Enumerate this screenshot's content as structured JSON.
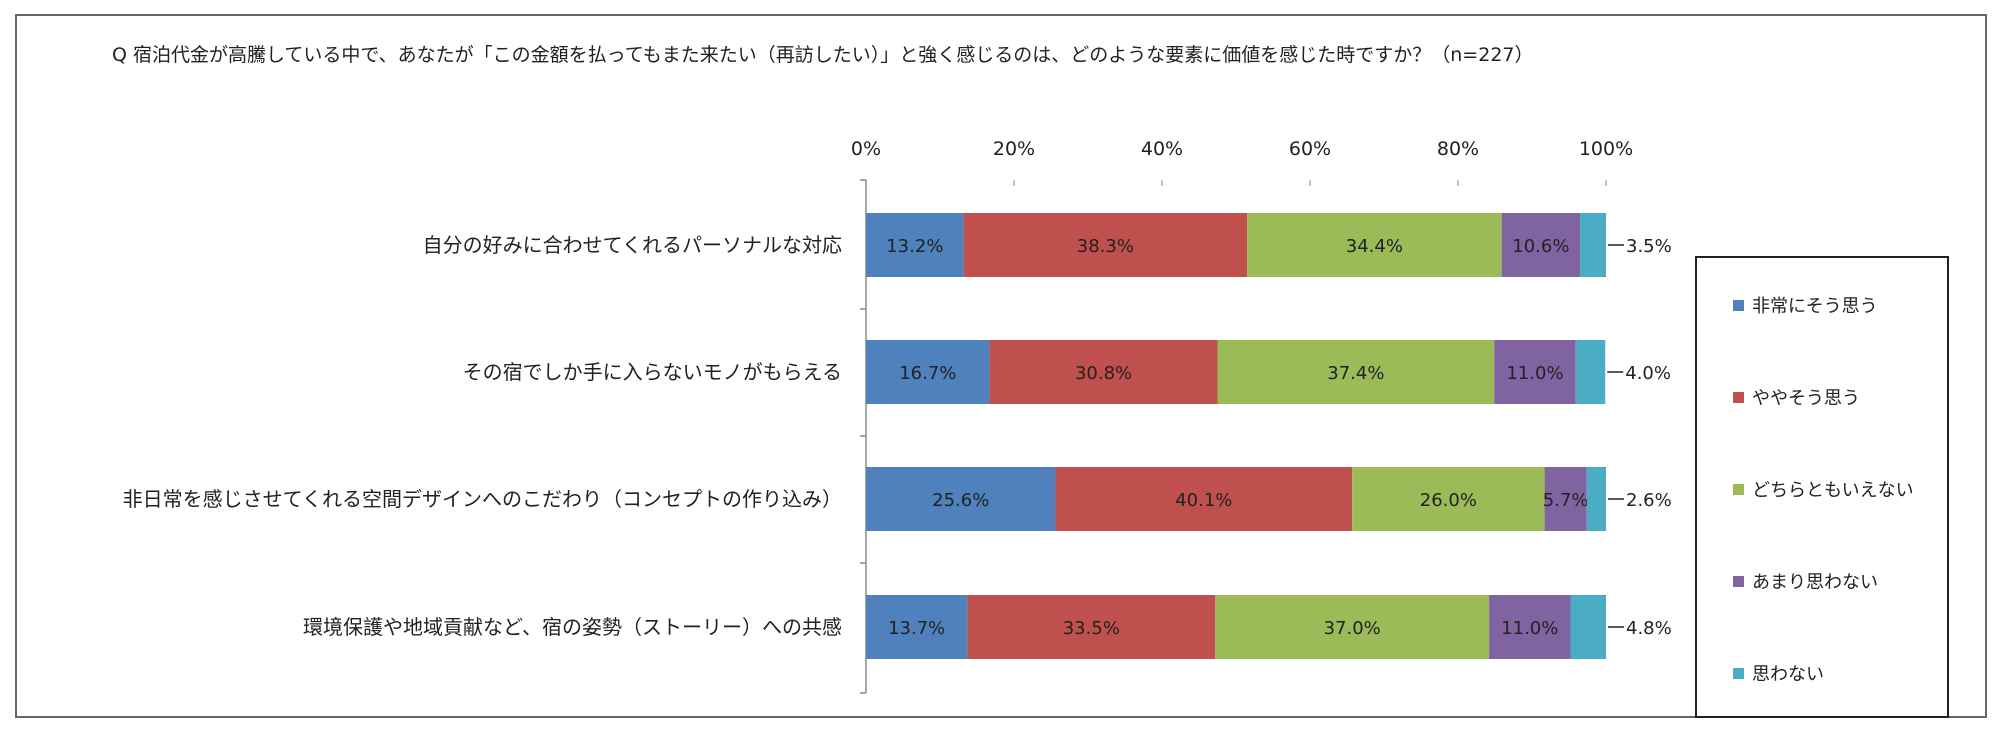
{
  "question": "Q 宿泊代金が高騰している中で、あなたが「この金額を払ってもまた来たい（再訪したい）」と強く感じるのは、どのような要素に価値を感じた時ですか？（n=227）",
  "colors": [
    "#4f81bd",
    "#c0504d",
    "#9bbb59",
    "#8064a2",
    "#4bacc6"
  ],
  "chart_data": {
    "type": "bar",
    "orientation": "horizontal",
    "stacked": "100%",
    "title": "",
    "xlabel": "",
    "ylabel": "",
    "xlim": [
      0,
      100
    ],
    "x_ticks": [
      "0%",
      "20%",
      "40%",
      "60%",
      "80%",
      "100%"
    ],
    "legend_position": "right",
    "grid": false,
    "categories": [
      "自分の好みに合わせてくれるパーソナルな対応",
      "その宿でしか手に入らないモノがもらえる",
      "非日常を感じさせてくれる空間デザインへのこだわり（コンセプトの作り込み）",
      "環境保護や地域貢献など、宿の姿勢（ストーリー）への共感"
    ],
    "series": [
      {
        "name": "非常にそう思う",
        "values": [
          13.2,
          16.7,
          25.6,
          13.7
        ],
        "labels": [
          "13.2%",
          "16.7%",
          "25.6%",
          "13.7%"
        ]
      },
      {
        "name": "ややそう思う",
        "values": [
          38.3,
          30.8,
          40.1,
          33.5
        ],
        "labels": [
          "38.3%",
          "30.8%",
          "40.1%",
          "33.5%"
        ]
      },
      {
        "name": "どちらともいえない",
        "values": [
          34.4,
          37.4,
          26.0,
          37.0
        ],
        "labels": [
          "34.4%",
          "37.4%",
          "26.0%",
          "37.0%"
        ]
      },
      {
        "name": "あまり思わない",
        "values": [
          10.6,
          11.0,
          5.7,
          11.0
        ],
        "labels": [
          "10.6%",
          "11.0%",
          "5.7%",
          "11.0%"
        ]
      },
      {
        "name": "思わない",
        "values": [
          3.5,
          4.0,
          2.6,
          4.8
        ],
        "labels": [
          "3.5%",
          "4.0%",
          "2.6%",
          "4.8%"
        ]
      }
    ]
  }
}
